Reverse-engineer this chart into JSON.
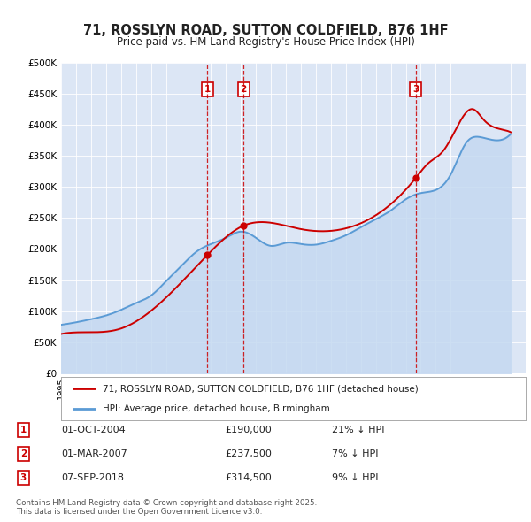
{
  "title": "71, ROSSLYN ROAD, SUTTON COLDFIELD, B76 1HF",
  "subtitle": "Price paid vs. HM Land Registry's House Price Index (HPI)",
  "background_color": "#ffffff",
  "plot_bg_color": "#dce6f5",
  "ylim": [
    0,
    500000
  ],
  "yticks": [
    0,
    50000,
    100000,
    150000,
    200000,
    250000,
    300000,
    350000,
    400000,
    450000,
    500000
  ],
  "ytick_labels": [
    "£0",
    "£50K",
    "£100K",
    "£150K",
    "£200K",
    "£250K",
    "£300K",
    "£350K",
    "£400K",
    "£450K",
    "£500K"
  ],
  "legend_entries": [
    "71, ROSSLYN ROAD, SUTTON COLDFIELD, B76 1HF (detached house)",
    "HPI: Average price, detached house, Birmingham"
  ],
  "legend_colors": [
    "#cc0000",
    "#5b9bd5"
  ],
  "transactions": [
    {
      "label": "1",
      "date_x": 2004.75,
      "price": 190000,
      "text": "01-OCT-2004",
      "amount": "£190,000",
      "pct": "21% ↓ HPI"
    },
    {
      "label": "2",
      "date_x": 2007.17,
      "price": 237500,
      "text": "01-MAR-2007",
      "amount": "£237,500",
      "pct": "7% ↓ HPI"
    },
    {
      "label": "3",
      "date_x": 2018.67,
      "price": 314500,
      "text": "07-SEP-2018",
      "amount": "£314,500",
      "pct": "9% ↓ HPI"
    }
  ],
  "footer": "Contains HM Land Registry data © Crown copyright and database right 2025.\nThis data is licensed under the Open Government Licence v3.0.",
  "hpi_color": "#5b9bd5",
  "hpi_fill_color": "#c5d9f1",
  "price_color": "#cc0000",
  "vline_color": "#cc0000",
  "annotation_box_color": "#cc0000",
  "xmin": 1995,
  "xmax": 2026,
  "years_hpi": [
    1995,
    1996,
    1997,
    1998,
    1999,
    2000,
    2001,
    2002,
    2003,
    2004,
    2005,
    2006,
    2007,
    2008,
    2009,
    2010,
    2011,
    2012,
    2013,
    2014,
    2015,
    2016,
    2017,
    2018,
    2019,
    2020,
    2021,
    2022,
    2023,
    2024,
    2025
  ],
  "hpi_values": [
    78000,
    82000,
    87000,
    93000,
    102000,
    113000,
    125000,
    148000,
    172000,
    195000,
    208000,
    218000,
    228000,
    218000,
    205000,
    210000,
    208000,
    207000,
    213000,
    222000,
    235000,
    248000,
    262000,
    280000,
    290000,
    295000,
    320000,
    370000,
    380000,
    375000,
    385000
  ],
  "price_x": [
    1994.5,
    1995.5,
    1999.0,
    2004.75,
    2007.17,
    2011.0,
    2018.67,
    2019.5,
    2020.5,
    2021.5,
    2022.5,
    2023.2,
    2024.0,
    2024.8,
    2025.0
  ],
  "price_y": [
    60000,
    65000,
    72000,
    190000,
    237500,
    232000,
    314500,
    338000,
    358000,
    400000,
    425000,
    408000,
    395000,
    390000,
    388000
  ]
}
